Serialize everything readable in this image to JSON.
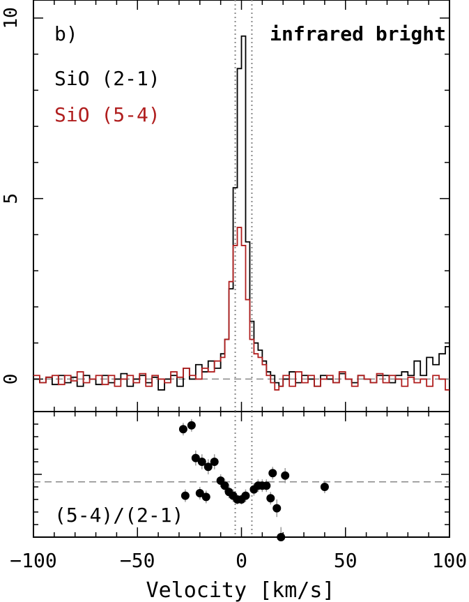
{
  "chart_data": [
    {
      "type": "line",
      "panel_label": "b)",
      "annotation": "infrared bright",
      "xlim": [
        -100,
        100
      ],
      "ylim": [
        -0.9,
        10.5
      ],
      "y_ticks": [
        "0",
        "5",
        "10"
      ],
      "y_tick_values": [
        0,
        5,
        10
      ],
      "zero_line": 0,
      "vertical_markers": [
        -3,
        5
      ],
      "colors": {
        "sio21": "#000000",
        "sio54": "#b01e1e",
        "ref": "#888888"
      },
      "series": [
        {
          "name": "SiO (2-1)",
          "color": "#000000",
          "x": [
            -100,
            -97,
            -94,
            -91,
            -88,
            -85,
            -82,
            -79,
            -76,
            -73,
            -70,
            -67,
            -64,
            -61,
            -58,
            -55,
            -52,
            -49,
            -46,
            -43,
            -40,
            -37,
            -34,
            -31,
            -28,
            -25,
            -22,
            -19,
            -16,
            -13,
            -10,
            -8,
            -6,
            -4,
            -2,
            0,
            2,
            4,
            6,
            8,
            10,
            12,
            14,
            16,
            18,
            20,
            23,
            26,
            29,
            32,
            35,
            38,
            41,
            44,
            47,
            50,
            53,
            56,
            59,
            62,
            65,
            68,
            71,
            74,
            77,
            80,
            83,
            86,
            89,
            92,
            95,
            98
          ],
          "y": [
            0.0,
            -0.1,
            0.05,
            -0.15,
            0.1,
            -0.1,
            0.05,
            -0.2,
            0.1,
            0.0,
            -0.15,
            0.1,
            -0.1,
            0.0,
            0.15,
            -0.2,
            0.0,
            0.1,
            -0.1,
            0.05,
            -0.3,
            0.0,
            0.1,
            -0.2,
            0.3,
            0.0,
            0.4,
            0.2,
            0.5,
            0.3,
            0.7,
            1.1,
            2.5,
            5.3,
            8.6,
            9.5,
            3.8,
            1.6,
            1.0,
            0.8,
            0.5,
            0.2,
            0.1,
            -0.1,
            -0.2,
            0.0,
            0.2,
            -0.1,
            0.1,
            0.0,
            -0.2,
            0.1,
            0.0,
            -0.1,
            0.15,
            0.0,
            -0.1,
            0.1,
            0.0,
            -0.1,
            0.1,
            0.1,
            -0.1,
            0.1,
            0.2,
            0.1,
            0.5,
            0.1,
            0.6,
            0.4,
            0.7,
            0.9
          ]
        },
        {
          "name": "SiO (5-4)",
          "color": "#b01e1e",
          "x": [
            -100,
            -97,
            -94,
            -91,
            -88,
            -85,
            -82,
            -79,
            -76,
            -73,
            -70,
            -67,
            -64,
            -61,
            -58,
            -55,
            -52,
            -49,
            -46,
            -43,
            -40,
            -37,
            -34,
            -31,
            -28,
            -25,
            -22,
            -19,
            -16,
            -13,
            -10,
            -8,
            -6,
            -4,
            -2,
            0,
            2,
            4,
            6,
            8,
            10,
            12,
            14,
            16,
            18,
            20,
            23,
            26,
            29,
            32,
            35,
            38,
            41,
            44,
            47,
            50,
            53,
            56,
            59,
            62,
            65,
            68,
            71,
            74,
            77,
            80,
            83,
            86,
            89,
            92,
            95,
            98
          ],
          "y": [
            0.1,
            -0.1,
            0.05,
            0.1,
            -0.15,
            0.1,
            -0.05,
            0.2,
            -0.1,
            0.0,
            0.1,
            -0.15,
            0.1,
            -0.2,
            0.0,
            0.1,
            -0.1,
            0.15,
            -0.2,
            0.1,
            0.0,
            -0.1,
            0.2,
            0.05,
            0.3,
            0.1,
            0.0,
            0.3,
            0.2,
            0.5,
            0.6,
            1.1,
            2.7,
            3.7,
            4.2,
            3.7,
            2.2,
            1.1,
            0.7,
            0.6,
            0.4,
            0.1,
            -0.1,
            -0.3,
            -0.2,
            0.1,
            -0.2,
            0.2,
            -0.1,
            0.1,
            -0.2,
            0.0,
            0.1,
            -0.1,
            0.2,
            0.0,
            -0.2,
            0.1,
            0.0,
            -0.1,
            0.15,
            -0.1,
            0.1,
            0.0,
            -0.2,
            0.05,
            -0.1,
            0.0,
            -0.2,
            0.1,
            0.0,
            -0.3
          ]
        }
      ]
    },
    {
      "type": "scatter",
      "label": "(5-4)/(2-1)",
      "xlim": [
        -100,
        100
      ],
      "ylim": [
        0,
        1
      ],
      "reference_line": 0.44,
      "x_ticks": [
        "−100",
        "−50",
        "0",
        "50",
        "100"
      ],
      "x_tick_values": [
        -100,
        -50,
        0,
        50,
        100
      ],
      "xlabel": "Velocity [km/s]",
      "points": [
        {
          "x": -28,
          "y": 0.86,
          "err": 0.05
        },
        {
          "x": -24,
          "y": 0.89,
          "err": 0.05
        },
        {
          "x": -22,
          "y": 0.63,
          "err": 0.06
        },
        {
          "x": -19,
          "y": 0.6,
          "err": 0.06
        },
        {
          "x": -16,
          "y": 0.56,
          "err": 0.06
        },
        {
          "x": -13,
          "y": 0.6,
          "err": 0.06
        },
        {
          "x": -10,
          "y": 0.45,
          "err": 0.05
        },
        {
          "x": -8,
          "y": 0.41,
          "err": 0.05
        },
        {
          "x": -6,
          "y": 0.36,
          "err": 0.05
        },
        {
          "x": -4,
          "y": 0.33,
          "err": 0.05
        },
        {
          "x": -2,
          "y": 0.3,
          "err": 0.04
        },
        {
          "x": 0,
          "y": 0.3,
          "err": 0.04
        },
        {
          "x": 2,
          "y": 0.33,
          "err": 0.05
        },
        {
          "x": 6,
          "y": 0.38,
          "err": 0.05
        },
        {
          "x": 8,
          "y": 0.41,
          "err": 0.05
        },
        {
          "x": 10,
          "y": 0.41,
          "err": 0.05
        },
        {
          "x": 12,
          "y": 0.41,
          "err": 0.05
        },
        {
          "x": 14,
          "y": 0.31,
          "err": 0.05
        },
        {
          "x": 15,
          "y": 0.51,
          "err": 0.05
        },
        {
          "x": 17,
          "y": 0.23,
          "err": 0.07
        },
        {
          "x": 19,
          "y": -0.02,
          "err": 0.08
        },
        {
          "x": 21,
          "y": 0.49,
          "err": 0.06
        },
        {
          "x": 40,
          "y": 0.4,
          "err": 0.05
        },
        {
          "x": -27,
          "y": 0.33,
          "err": 0.05
        },
        {
          "x": -20,
          "y": 0.35,
          "err": 0.05
        },
        {
          "x": -17,
          "y": 0.32,
          "err": 0.05
        }
      ]
    }
  ]
}
